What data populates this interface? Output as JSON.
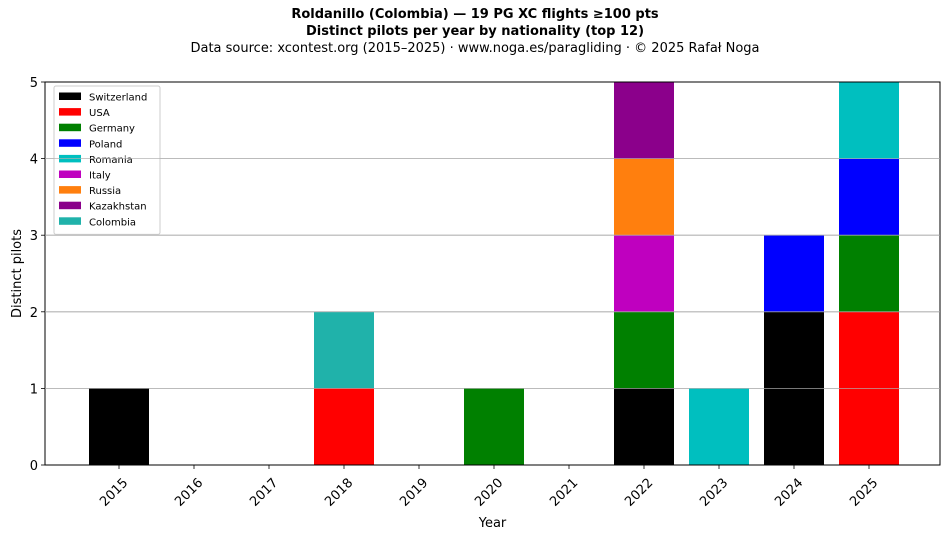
{
  "chart_data": {
    "type": "bar",
    "stacked": true,
    "title": "Roldanillo (Colombia)  —  19 PG XC flights ≥100 pts",
    "subtitle": "Distinct pilots per year by nationality (top 12)",
    "source": "Data source: xcontest.org (2015–2025)  ·  www.noga.es/paragliding  ·  © 2025 Rafał Noga",
    "xlabel": "Year",
    "ylabel": "Distinct pilots",
    "categories": [
      "2015",
      "2016",
      "2017",
      "2018",
      "2019",
      "2020",
      "2021",
      "2022",
      "2023",
      "2024",
      "2025"
    ],
    "ylim": [
      0,
      5
    ],
    "yticks": [
      0,
      1,
      2,
      3,
      4,
      5
    ],
    "grid": "y",
    "legend_position": "top-left",
    "series": [
      {
        "name": "Switzerland",
        "color": "#000000",
        "values": [
          1,
          0,
          0,
          0,
          0,
          0,
          0,
          1,
          0,
          2,
          0
        ]
      },
      {
        "name": "USA",
        "color": "#ff0000",
        "values": [
          0,
          0,
          0,
          1,
          0,
          0,
          0,
          0,
          0,
          0,
          2
        ]
      },
      {
        "name": "Germany",
        "color": "#008000",
        "values": [
          0,
          0,
          0,
          0,
          0,
          1,
          0,
          1,
          0,
          0,
          1
        ]
      },
      {
        "name": "Poland",
        "color": "#0000ff",
        "values": [
          0,
          0,
          0,
          0,
          0,
          0,
          0,
          0,
          0,
          1,
          1
        ]
      },
      {
        "name": "Romania",
        "color": "#00bfbf",
        "values": [
          0,
          0,
          0,
          0,
          0,
          0,
          0,
          0,
          1,
          0,
          1
        ]
      },
      {
        "name": "Italy",
        "color": "#bf00bf",
        "values": [
          0,
          0,
          0,
          0,
          0,
          0,
          0,
          1,
          0,
          0,
          0
        ]
      },
      {
        "name": "Russia",
        "color": "#ff7f0e",
        "values": [
          0,
          0,
          0,
          0,
          0,
          0,
          0,
          1,
          0,
          0,
          0
        ]
      },
      {
        "name": "Kazakhstan",
        "color": "#8b008b",
        "values": [
          0,
          0,
          0,
          0,
          0,
          0,
          0,
          1,
          0,
          0,
          0
        ]
      },
      {
        "name": "Colombia",
        "color": "#20b2aa",
        "values": [
          0,
          0,
          0,
          1,
          0,
          0,
          0,
          0,
          0,
          0,
          0
        ]
      }
    ]
  }
}
